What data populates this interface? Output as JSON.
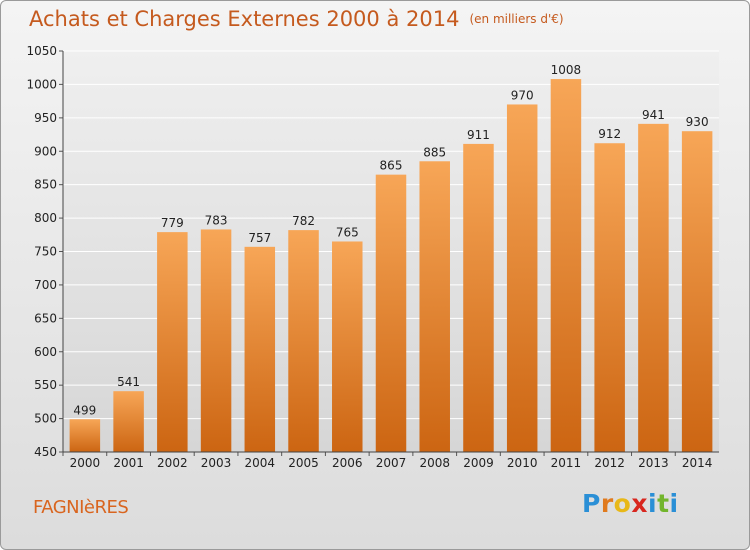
{
  "title": "Achats et Charges Externes 2000 à 2014",
  "subtitle": "(en milliers d'€)",
  "commune": "FAGNIèRES",
  "logo": {
    "letters": [
      "P",
      "r",
      "o",
      "x",
      "i",
      "t",
      "i"
    ],
    "colors": [
      "#2a8fd6",
      "#e07a1d",
      "#e8b818",
      "#d8261e",
      "#2a8fd6",
      "#72b52c",
      "#2a8fd6"
    ]
  },
  "colors": {
    "bar_top": "#f7a657",
    "bar_bottom": "#cc6512",
    "title": "#c55a1e"
  },
  "chart_data": {
    "type": "bar",
    "categories": [
      "2000",
      "2001",
      "2002",
      "2003",
      "2004",
      "2005",
      "2006",
      "2007",
      "2008",
      "2009",
      "2010",
      "2011",
      "2012",
      "2013",
      "2014"
    ],
    "values": [
      499,
      541,
      779,
      783,
      757,
      782,
      765,
      865,
      885,
      911,
      970,
      1008,
      912,
      941,
      930
    ],
    "ylim": [
      450,
      1050
    ],
    "yticks": [
      450,
      500,
      550,
      600,
      650,
      700,
      750,
      800,
      850,
      900,
      950,
      1000,
      1050
    ],
    "grid": true
  }
}
